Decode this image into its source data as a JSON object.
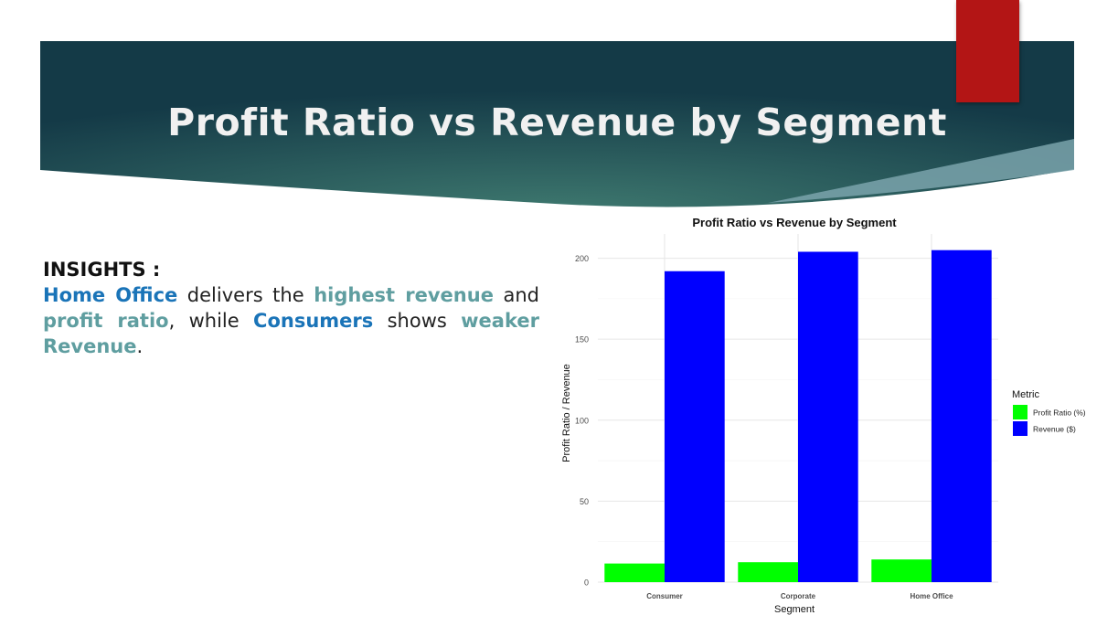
{
  "slide": {
    "title": "Profit Ratio vs Revenue by Segment",
    "colors": {
      "band_dark": "#143a47",
      "band_light": "#3f7a70",
      "accent_tab": "#b31515",
      "accent_stripe": "#7aa3ac"
    }
  },
  "insights": {
    "heading": "INSIGHTS :",
    "text_parts": [
      {
        "text": "Home Office",
        "style": "blue"
      },
      {
        "text": " delivers the ",
        "style": "plain"
      },
      {
        "text": "highest revenue",
        "style": "teal"
      },
      {
        "text": " and ",
        "style": "plain"
      },
      {
        "text": "profit ratio",
        "style": "teal"
      },
      {
        "text": ", while ",
        "style": "plain"
      },
      {
        "text": "Consumers",
        "style": "blue"
      },
      {
        "text": " shows ",
        "style": "plain"
      },
      {
        "text": "weaker Revenue",
        "style": "teal"
      },
      {
        "text": ".",
        "style": "plain"
      }
    ]
  },
  "chart_data": {
    "type": "bar",
    "title": "Profit Ratio vs Revenue by Segment",
    "xlabel": "Segment",
    "ylabel": "Profit Ratio / Revenue",
    "categories": [
      "Consumer",
      "Corporate",
      "Home Office"
    ],
    "series": [
      {
        "name": "Profit Ratio (%)",
        "values": [
          11.5,
          12.3,
          14.0
        ],
        "color": "#00ff00"
      },
      {
        "name": "Revenue ($)",
        "values": [
          192.0,
          204.0,
          205.0
        ],
        "color": "#0000ff"
      }
    ],
    "ylim": [
      0,
      215
    ],
    "yticks": [
      0,
      50,
      100,
      150,
      200
    ],
    "grid": true,
    "legend": {
      "title": "Metric",
      "position": "right"
    }
  }
}
